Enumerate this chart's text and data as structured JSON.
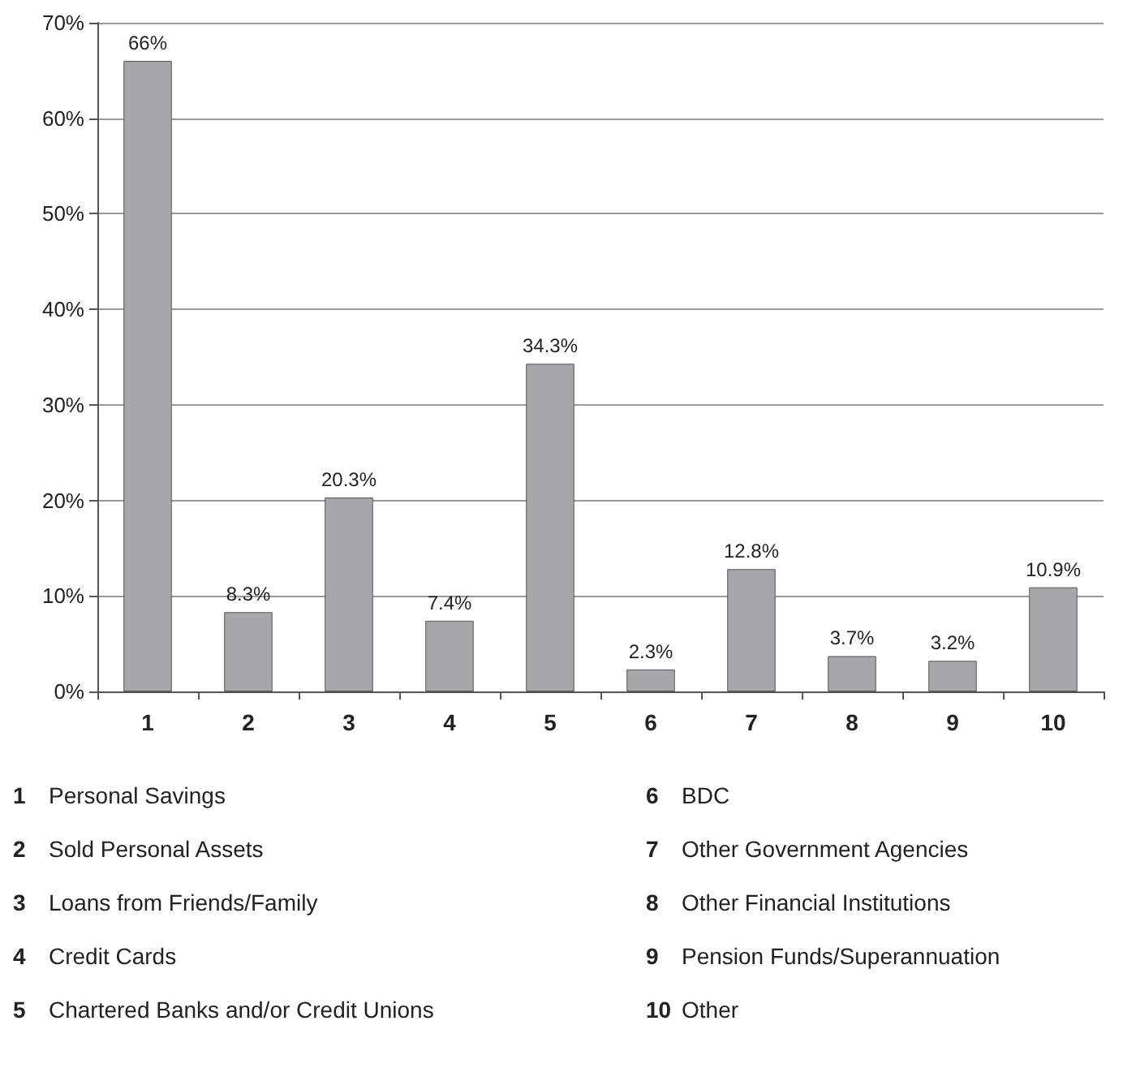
{
  "chart_data": {
    "type": "bar",
    "categories": [
      "1",
      "2",
      "3",
      "4",
      "5",
      "6",
      "7",
      "8",
      "9",
      "10"
    ],
    "values": [
      66,
      8.3,
      20.3,
      7.4,
      34.3,
      2.3,
      12.8,
      3.7,
      3.2,
      10.9
    ],
    "value_labels": [
      "66%",
      "8.3%",
      "20.3%",
      "7.4%",
      "34.3%",
      "2.3%",
      "12.8%",
      "3.7%",
      "3.2%",
      "10.9%"
    ],
    "color": "#a7a7a9",
    "ylim": [
      0,
      70
    ],
    "yticks": [
      {
        "value": 0,
        "label": "0%"
      },
      {
        "value": 10,
        "label": "10%"
      },
      {
        "value": 20,
        "label": "20%"
      },
      {
        "value": 30,
        "label": "30%"
      },
      {
        "value": 40,
        "label": "40%"
      },
      {
        "value": 50,
        "label": "50%"
      },
      {
        "value": 60,
        "label": "60%"
      },
      {
        "value": 70,
        "label": "70%"
      }
    ],
    "grid": "y",
    "annotations": [
      "Personal Savings",
      "Sold Personal Assets",
      "Loans from Friends/Family",
      "Credit Cards",
      "Chartered Banks and/or Credit Unions",
      "BDC",
      "Other Government Agencies",
      "Other Financial Institutions",
      "Pension Funds/Superannuation",
      "Other"
    ]
  }
}
